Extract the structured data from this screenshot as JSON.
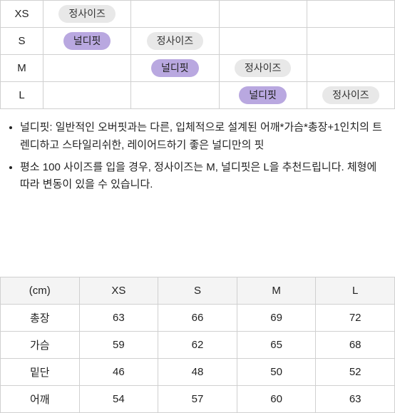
{
  "fit_table": {
    "sizes": [
      "XS",
      "S",
      "M",
      "L"
    ],
    "pill_labels": {
      "nerdy": "널디핏",
      "regular": "정사이즈"
    },
    "pill_colors": {
      "nerdy": "#b9a8e0",
      "regular": "#e8e8e8"
    },
    "rows": [
      {
        "size": "XS",
        "cells": [
          {
            "type": "regular"
          },
          null,
          null,
          null
        ]
      },
      {
        "size": "S",
        "cells": [
          {
            "type": "nerdy"
          },
          {
            "type": "regular"
          },
          null,
          null
        ]
      },
      {
        "size": "M",
        "cells": [
          null,
          {
            "type": "nerdy"
          },
          {
            "type": "regular"
          },
          null
        ]
      },
      {
        "size": "L",
        "cells": [
          null,
          null,
          {
            "type": "nerdy"
          },
          {
            "type": "regular"
          }
        ]
      }
    ]
  },
  "notes": [
    "널디핏: 일반적인 오버핏과는 다른, 입체적으로 설계된 어깨*가슴*총장+1인치의 트렌디하고 스타일리쉬한, 레이어드하기 좋은 널디만의 핏",
    "평소 100 사이즈를 입을 경우, 정사이즈는 M, 널디핏은 L을 추천드립니다. 체형에 따라 변동이 있을 수 있습니다."
  ],
  "size_table": {
    "unit_header": "(cm)",
    "columns": [
      "XS",
      "S",
      "M",
      "L"
    ],
    "rows": [
      {
        "label": "총장",
        "values": [
          63,
          66,
          69,
          72
        ]
      },
      {
        "label": "가슴",
        "values": [
          59,
          62,
          65,
          68
        ]
      },
      {
        "label": "밑단",
        "values": [
          46,
          48,
          50,
          52
        ]
      },
      {
        "label": "어깨",
        "values": [
          54,
          57,
          60,
          63
        ]
      }
    ],
    "header_bg": "#f4f4f4",
    "border_color": "#d0d0d0"
  }
}
